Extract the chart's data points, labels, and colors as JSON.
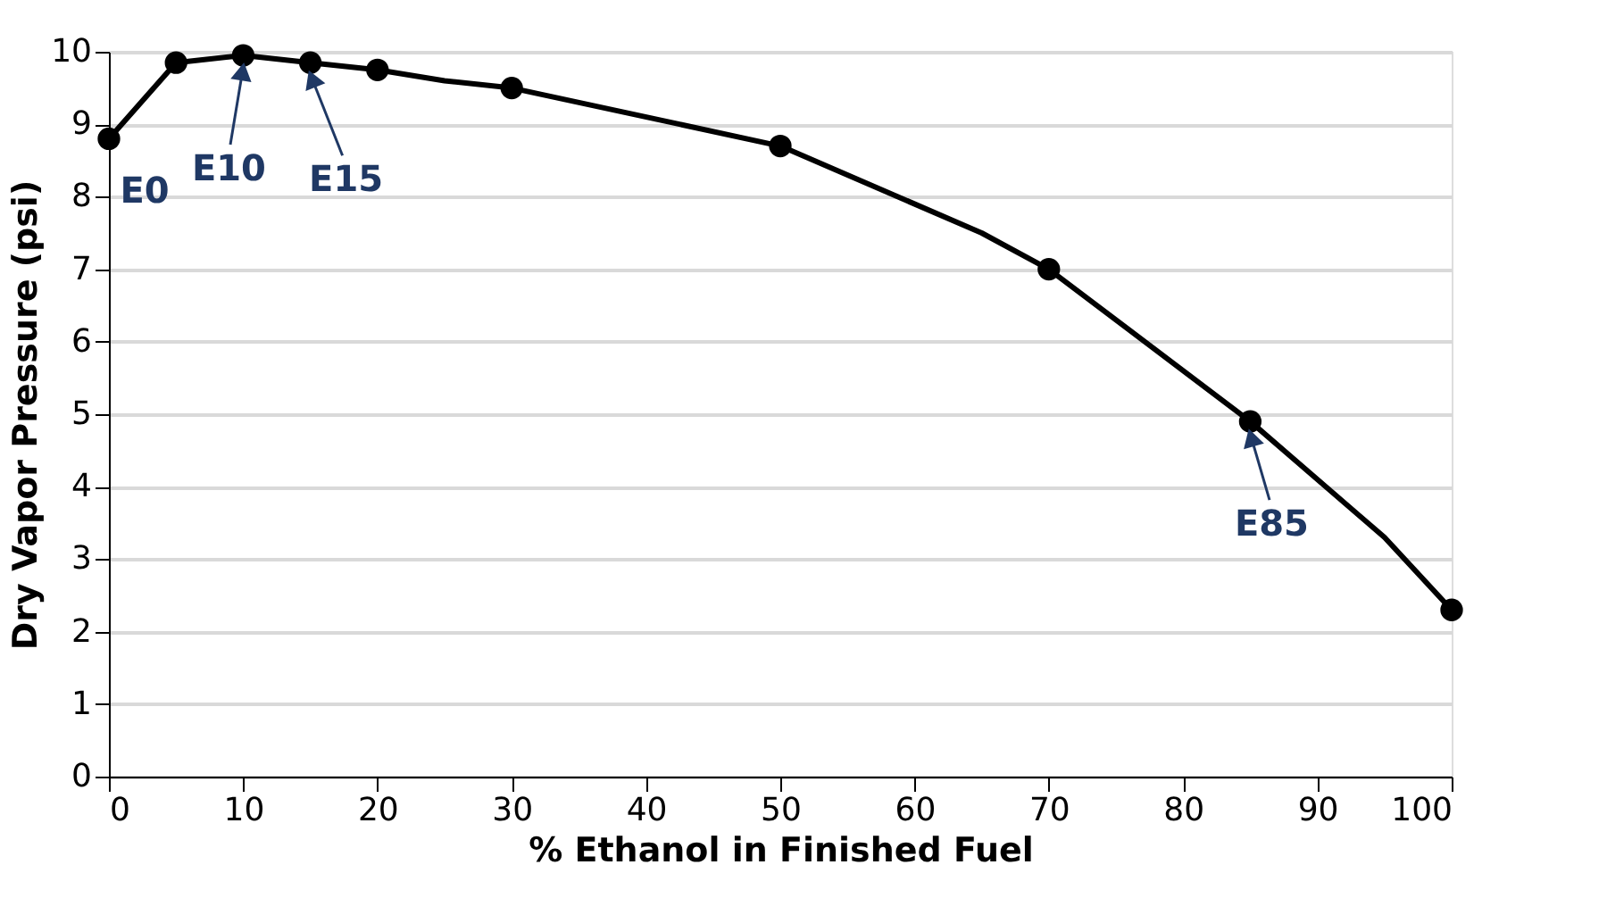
{
  "chart_data": {
    "type": "line",
    "xlabel": "% Ethanol in Finished Fuel",
    "ylabel": "Dry Vapor Pressure (psi)",
    "xlim": [
      0,
      100
    ],
    "xticks": [
      0,
      10,
      20,
      30,
      40,
      50,
      60,
      70,
      80,
      90,
      100
    ],
    "ylim": [
      0,
      10
    ],
    "yticks": [
      0,
      1,
      2,
      3,
      4,
      5,
      6,
      7,
      8,
      9,
      10
    ],
    "grid": "y",
    "series": [
      {
        "color": "#000000",
        "marker": "none",
        "x": [
          0,
          5,
          10,
          15,
          20,
          25,
          30,
          50,
          65,
          70,
          85,
          95,
          100
        ],
        "values": [
          8.8,
          9.85,
          9.95,
          9.85,
          9.75,
          9.6,
          9.5,
          8.7,
          7.5,
          7.0,
          4.9,
          3.3,
          2.3
        ]
      },
      {
        "type": "scatter",
        "color": "#000000",
        "marker": "circle",
        "x": [
          0,
          5,
          10,
          15,
          20,
          30,
          50,
          70,
          85,
          100
        ],
        "values": [
          8.8,
          9.85,
          9.95,
          9.85,
          9.75,
          9.5,
          8.7,
          7.0,
          4.9,
          2.3
        ]
      }
    ],
    "annotations": [
      {
        "text": "E0",
        "x": 0,
        "y": 8.8
      },
      {
        "text": "E10",
        "x": 10,
        "y": 9.95
      },
      {
        "text": "E15",
        "x": 15,
        "y": 9.85
      },
      {
        "text": "E85",
        "x": 85,
        "y": 4.9
      }
    ]
  }
}
